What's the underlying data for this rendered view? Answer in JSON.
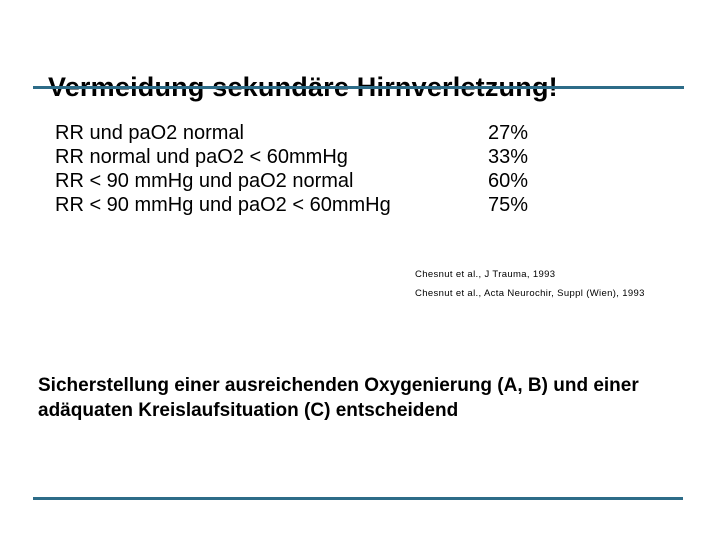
{
  "slide": {
    "title": "Vermeidung sekundäre Hirnverletzung!",
    "accent_color": "#2d6c88",
    "rows": [
      {
        "condition": "RR und paO2 normal",
        "value": "27%"
      },
      {
        "condition": "RR normal und paO2 < 60mmHg",
        "value": "33%"
      },
      {
        "condition": "RR < 90 mmHg und paO2 normal",
        "value": "60%"
      },
      {
        "condition": "RR < 90 mmHg und paO2 < 60mmHg",
        "value": "75%"
      }
    ],
    "citations": [
      "Chesnut et al., J Trauma, 1993",
      "Chesnut et al., Acta Neurochir, Suppl (Wien), 1993"
    ],
    "conclusion": "Sicherstellung einer ausreichenden Oxygenierung (A, B) und einer adäquaten Kreislaufsituation (C) entscheidend"
  }
}
